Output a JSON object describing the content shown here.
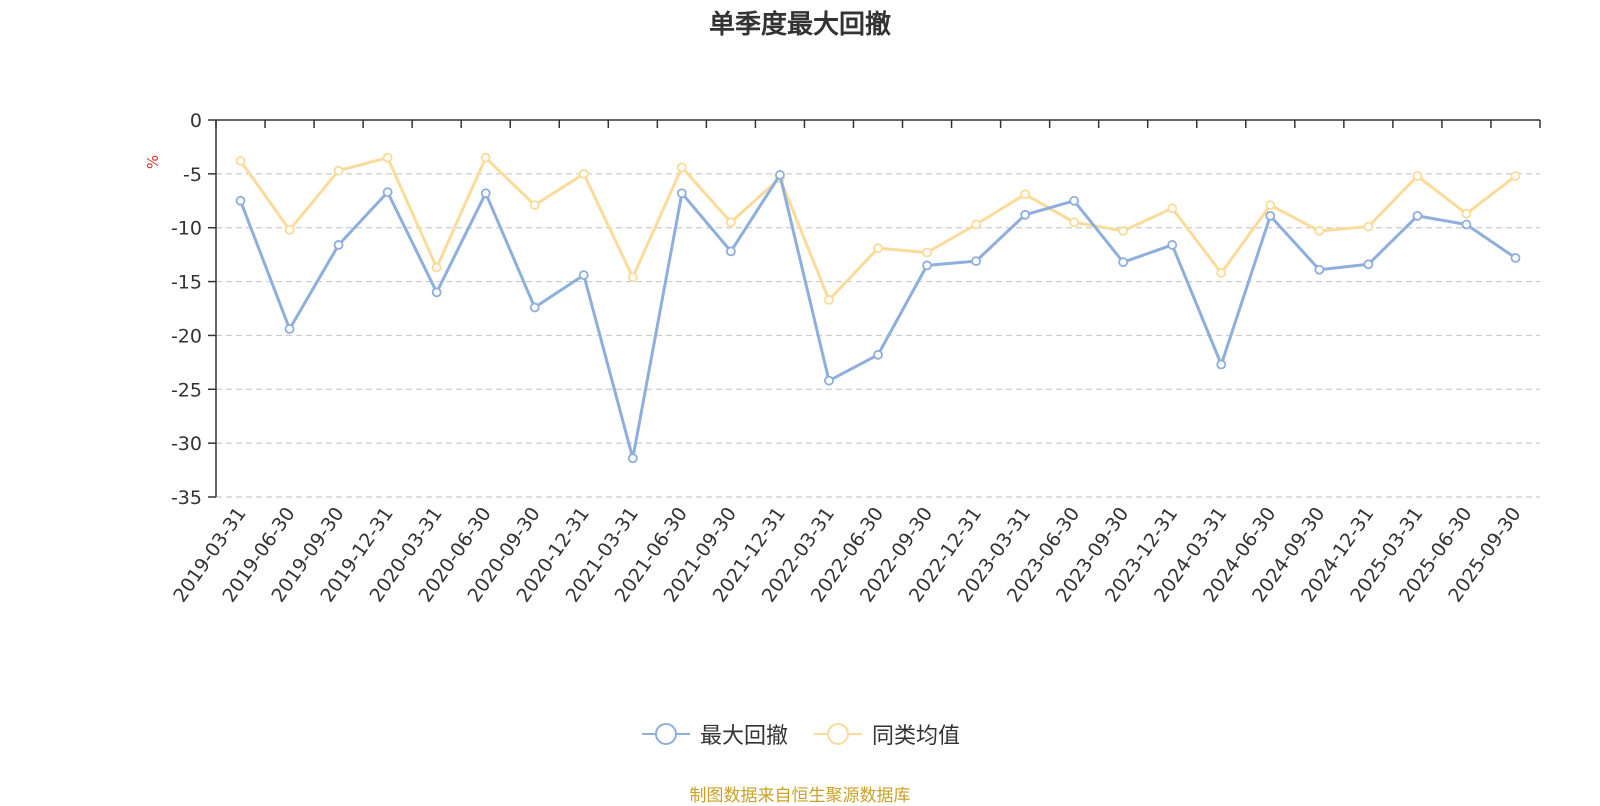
{
  "chart_data": {
    "type": "line",
    "title": "单季度最大回撤",
    "ylabel": "%",
    "ylim": [
      -35,
      0
    ],
    "yticks": [
      0,
      -5,
      -10,
      -15,
      -20,
      -25,
      -30,
      -35
    ],
    "grid": true,
    "legend_position": "bottom",
    "categories": [
      "2019-03-31",
      "2019-06-30",
      "2019-09-30",
      "2019-12-31",
      "2020-03-31",
      "2020-06-30",
      "2020-09-30",
      "2020-12-31",
      "2021-03-31",
      "2021-06-30",
      "2021-09-30",
      "2021-12-31",
      "2022-03-31",
      "2022-06-30",
      "2022-09-30",
      "2022-12-31",
      "2023-03-31",
      "2023-06-30",
      "2023-09-30",
      "2023-12-31",
      "2024-03-31",
      "2024-06-30",
      "2024-09-30",
      "2024-12-31",
      "2025-03-31",
      "2025-06-30",
      "2025-09-30"
    ],
    "series": [
      {
        "name": "最大回撤",
        "color": "#8eaedc",
        "values": [
          -7.5,
          -19.4,
          -11.6,
          -6.7,
          -16.0,
          -6.8,
          -17.4,
          -14.4,
          -31.4,
          -6.8,
          -12.2,
          -5.1,
          -24.2,
          -21.8,
          -13.5,
          -13.1,
          -8.8,
          -7.5,
          -13.2,
          -11.6,
          -22.7,
          -8.9,
          -13.9,
          -13.4,
          -8.9,
          -9.7,
          -12.8
        ]
      },
      {
        "name": "同类均值",
        "color": "#fadb9a",
        "values": [
          -3.8,
          -10.2,
          -4.7,
          -3.5,
          -13.7,
          -3.5,
          -7.9,
          -5.0,
          -14.6,
          -4.4,
          -9.5,
          -5.4,
          -16.7,
          -11.9,
          -12.3,
          -9.7,
          -6.9,
          -9.5,
          -10.3,
          -8.2,
          -14.2,
          -7.9,
          -10.3,
          -9.9,
          -5.2,
          -8.7,
          -5.2
        ]
      }
    ]
  },
  "legend": {
    "series1": "最大回撤",
    "series2": "同类均值"
  },
  "source_text": "制图数据来自恒生聚源数据库"
}
